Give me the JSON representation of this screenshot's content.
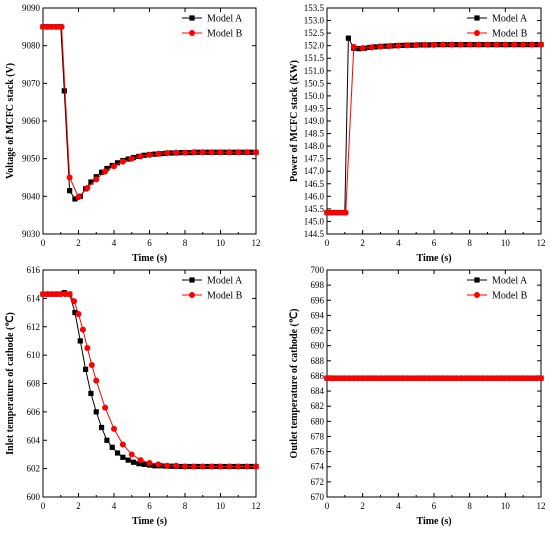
{
  "colors": {
    "model_a": "#000000",
    "model_b": "#ff0000"
  },
  "chart_data": [
    {
      "type": "line",
      "xlabel": "Time (s)",
      "ylabel": "Voltage of MCFC stack (V)",
      "xlim": [
        0,
        12
      ],
      "ylim": [
        9030,
        9090
      ],
      "xticks": [
        "0",
        "2",
        "4",
        "6",
        "8",
        "10",
        "12"
      ],
      "yticks": [
        "9030",
        "9040",
        "9050",
        "9060",
        "9070",
        "9080",
        "9090"
      ],
      "legend": "top-right",
      "series": [
        {
          "name": "Model A",
          "marker": "square",
          "x": [
            0,
            0.2,
            0.4,
            0.6,
            0.8,
            1.0,
            1.2,
            1.5,
            1.8,
            2.1,
            2.4,
            2.7,
            3.0,
            3.3,
            3.6,
            3.9,
            4.2,
            4.5,
            4.8,
            5.1,
            5.4,
            5.7,
            6.0,
            6.3,
            6.6,
            6.9,
            7.2,
            7.5,
            7.8,
            8.1,
            8.4,
            8.7,
            9.0,
            9.3,
            9.6,
            9.9,
            10.2,
            10.5,
            10.8,
            11.1,
            11.4,
            11.7,
            12.0
          ],
          "y": [
            9085,
            9085,
            9085,
            9085,
            9085,
            9085,
            9068,
            9041.5,
            9039.3,
            9040,
            9042,
            9043.8,
            9045.2,
            9046.4,
            9047.4,
            9048.2,
            9048.9,
            9049.5,
            9049.9,
            9050.3,
            9050.6,
            9050.9,
            9051.1,
            9051.2,
            9051.3,
            9051.4,
            9051.5,
            9051.5,
            9051.6,
            9051.6,
            9051.6,
            9051.7,
            9051.7,
            9051.7,
            9051.7,
            9051.7,
            9051.7,
            9051.7,
            9051.7,
            9051.7,
            9051.7,
            9051.7,
            9051.7
          ]
        },
        {
          "name": "Model B",
          "marker": "circle",
          "x": [
            0,
            0.25,
            0.5,
            0.75,
            1.0,
            1.05,
            1.5,
            2.0,
            2.5,
            3.0,
            3.5,
            4.0,
            4.5,
            5.0,
            5.5,
            6.0,
            6.5,
            7.0,
            7.5,
            8.0,
            8.5,
            9.0,
            9.5,
            10.0,
            10.5,
            11.0,
            11.5,
            12.0
          ],
          "y": [
            9085,
            9085,
            9085,
            9085,
            9085,
            9085,
            9045,
            9039.8,
            9042.2,
            9044.5,
            9046.6,
            9048,
            9049.2,
            9050,
            9050.6,
            9051,
            9051.3,
            9051.5,
            9051.6,
            9051.6,
            9051.7,
            9051.7,
            9051.7,
            9051.7,
            9051.7,
            9051.7,
            9051.7,
            9051.7
          ]
        }
      ]
    },
    {
      "type": "line",
      "xlabel": "Time (s)",
      "ylabel": "Power of MCFC stack (KW)",
      "xlim": [
        0,
        12
      ],
      "ylim": [
        144.5,
        153.5
      ],
      "xticks": [
        "0",
        "2",
        "4",
        "6",
        "8",
        "10",
        "12"
      ],
      "yticks": [
        "144.5",
        "145.0",
        "145.5",
        "146.0",
        "146.5",
        "147.0",
        "147.5",
        "148.0",
        "148.5",
        "149.0",
        "149.5",
        "150.0",
        "150.5",
        "151.0",
        "151.5",
        "152.0",
        "152.5",
        "153.0",
        "153.5"
      ],
      "legend": "top-right",
      "series": [
        {
          "name": "Model A",
          "marker": "square",
          "x": [
            0,
            0.2,
            0.4,
            0.6,
            0.8,
            1.0,
            1.2,
            1.5,
            1.8,
            2.1,
            2.4,
            2.7,
            3.0,
            3.3,
            3.6,
            3.9,
            4.2,
            4.5,
            4.8,
            5.1,
            5.4,
            5.7,
            6.0,
            6.3,
            6.6,
            6.9,
            7.2,
            7.5,
            7.8,
            8.1,
            8.4,
            8.7,
            9.0,
            9.3,
            9.6,
            9.9,
            10.2,
            10.5,
            10.8,
            11.1,
            11.4,
            11.7,
            12.0
          ],
          "y": [
            145.35,
            145.35,
            145.35,
            145.35,
            145.35,
            145.35,
            152.3,
            151.9,
            151.88,
            151.9,
            151.93,
            151.95,
            151.97,
            151.98,
            151.99,
            152.0,
            152.01,
            152.02,
            152.02,
            152.03,
            152.03,
            152.03,
            152.04,
            152.04,
            152.04,
            152.04,
            152.04,
            152.04,
            152.04,
            152.04,
            152.04,
            152.04,
            152.04,
            152.04,
            152.04,
            152.04,
            152.04,
            152.04,
            152.04,
            152.04,
            152.04,
            152.04,
            152.04
          ]
        },
        {
          "name": "Model B",
          "marker": "circle",
          "x": [
            0,
            0.25,
            0.5,
            0.75,
            1.0,
            1.05,
            1.5,
            2.0,
            2.5,
            3.0,
            3.5,
            4.0,
            4.5,
            5.0,
            5.5,
            6.0,
            6.5,
            7.0,
            7.5,
            8.0,
            8.5,
            9.0,
            9.5,
            10.0,
            10.5,
            11.0,
            11.5,
            12.0
          ],
          "y": [
            145.35,
            145.35,
            145.35,
            145.35,
            145.35,
            145.35,
            151.95,
            151.9,
            151.93,
            151.96,
            151.98,
            152.0,
            152.01,
            152.02,
            152.03,
            152.03,
            152.04,
            152.04,
            152.04,
            152.04,
            152.04,
            152.04,
            152.04,
            152.04,
            152.04,
            152.04,
            152.04,
            152.04
          ]
        }
      ]
    },
    {
      "type": "line",
      "xlabel": "Time (s)",
      "ylabel": "Inlet temperature of cathode (℃)",
      "xlim": [
        0,
        12
      ],
      "ylim": [
        600,
        616
      ],
      "xticks": [
        "0",
        "2",
        "4",
        "6",
        "8",
        "10",
        "12"
      ],
      "yticks": [
        "600",
        "602",
        "604",
        "606",
        "608",
        "610",
        "612",
        "614",
        "616"
      ],
      "legend": "top-right",
      "series": [
        {
          "name": "Model A",
          "marker": "square",
          "x": [
            0,
            0.3,
            0.6,
            0.9,
            1.2,
            1.5,
            1.8,
            2.1,
            2.4,
            2.7,
            3.0,
            3.3,
            3.6,
            3.9,
            4.2,
            4.5,
            4.8,
            5.1,
            5.4,
            5.7,
            6.0,
            6.3,
            6.6,
            6.9,
            7.2,
            7.5,
            7.8,
            8.1,
            8.4,
            8.7,
            9.0,
            9.3,
            9.6,
            9.9,
            10.2,
            10.5,
            10.8,
            11.1,
            11.4,
            11.7,
            12.0
          ],
          "y": [
            614.3,
            614.3,
            614.3,
            614.3,
            614.4,
            614.3,
            613.0,
            611.0,
            609.0,
            607.3,
            606.0,
            604.9,
            604.0,
            603.5,
            603.1,
            602.8,
            602.6,
            602.45,
            602.35,
            602.3,
            602.25,
            602.2,
            602.2,
            602.18,
            602.17,
            602.16,
            602.15,
            602.15,
            602.15,
            602.15,
            602.15,
            602.15,
            602.15,
            602.15,
            602.15,
            602.15,
            602.15,
            602.15,
            602.15,
            602.15,
            602.15
          ]
        },
        {
          "name": "Model B",
          "marker": "circle",
          "x": [
            0,
            0.25,
            0.5,
            0.75,
            1.0,
            1.25,
            1.5,
            1.75,
            2.0,
            2.25,
            2.5,
            2.75,
            3.0,
            3.5,
            4.0,
            4.5,
            5.0,
            5.5,
            6.0,
            6.5,
            7.0,
            7.5,
            8.0,
            8.5,
            9.0,
            9.5,
            10.0,
            10.5,
            11.0,
            11.5,
            12.0
          ],
          "y": [
            614.3,
            614.3,
            614.3,
            614.3,
            614.3,
            614.3,
            614.3,
            613.8,
            612.9,
            611.8,
            610.5,
            609.3,
            608.2,
            606.3,
            604.8,
            603.7,
            603.0,
            602.6,
            602.4,
            602.3,
            602.2,
            602.2,
            602.15,
            602.15,
            602.15,
            602.15,
            602.15,
            602.15,
            602.15,
            602.15,
            602.15
          ]
        }
      ]
    },
    {
      "type": "line",
      "xlabel": "Time (s)",
      "ylabel": "Outlet temperature of cathode (℃)",
      "xlim": [
        0,
        12
      ],
      "ylim": [
        670,
        700
      ],
      "xticks": [
        "0",
        "2",
        "4",
        "6",
        "8",
        "10",
        "12"
      ],
      "yticks": [
        "670",
        "672",
        "674",
        "676",
        "678",
        "680",
        "682",
        "684",
        "686",
        "688",
        "690",
        "692",
        "694",
        "696",
        "698",
        "700"
      ],
      "legend": "top-right",
      "series": [
        {
          "name": "Model A",
          "marker": "square",
          "x": [
            0,
            0.3,
            0.6,
            0.9,
            1.2,
            1.5,
            1.8,
            2.1,
            2.4,
            2.7,
            3.0,
            3.3,
            3.6,
            3.9,
            4.2,
            4.5,
            4.8,
            5.1,
            5.4,
            5.7,
            6.0,
            6.3,
            6.6,
            6.9,
            7.2,
            7.5,
            7.8,
            8.1,
            8.4,
            8.7,
            9.0,
            9.3,
            9.6,
            9.9,
            10.2,
            10.5,
            10.8,
            11.1,
            11.4,
            11.7,
            12.0
          ],
          "y": [
            685.7,
            685.7,
            685.7,
            685.7,
            685.7,
            685.7,
            685.7,
            685.7,
            685.7,
            685.7,
            685.7,
            685.7,
            685.7,
            685.7,
            685.7,
            685.7,
            685.7,
            685.7,
            685.7,
            685.7,
            685.7,
            685.7,
            685.7,
            685.7,
            685.7,
            685.7,
            685.7,
            685.7,
            685.7,
            685.7,
            685.7,
            685.7,
            685.7,
            685.7,
            685.7,
            685.7,
            685.7,
            685.7,
            685.7,
            685.7,
            685.7
          ]
        },
        {
          "name": "Model B",
          "marker": "circle",
          "x": [
            0,
            0.25,
            0.5,
            0.75,
            1.0,
            1.25,
            1.5,
            1.75,
            2.0,
            2.25,
            2.5,
            2.75,
            3.0,
            3.25,
            3.5,
            3.75,
            4.0,
            4.25,
            4.5,
            4.75,
            5.0,
            5.25,
            5.5,
            5.75,
            6.0,
            6.25,
            6.5,
            6.75,
            7.0,
            7.25,
            7.5,
            7.75,
            8.0,
            8.25,
            8.5,
            8.75,
            9.0,
            9.25,
            9.5,
            9.75,
            10.0,
            10.25,
            10.5,
            10.75,
            11.0,
            11.25,
            11.5,
            11.75,
            12.0
          ],
          "y": [
            685.7,
            685.7,
            685.7,
            685.7,
            685.7,
            685.7,
            685.7,
            685.7,
            685.7,
            685.7,
            685.7,
            685.7,
            685.7,
            685.7,
            685.7,
            685.7,
            685.7,
            685.7,
            685.7,
            685.7,
            685.7,
            685.7,
            685.7,
            685.7,
            685.7,
            685.7,
            685.7,
            685.7,
            685.7,
            685.7,
            685.7,
            685.7,
            685.7,
            685.7,
            685.7,
            685.7,
            685.7,
            685.7,
            685.7,
            685.7,
            685.7,
            685.7,
            685.7,
            685.7,
            685.7,
            685.7,
            685.7,
            685.7,
            685.7
          ]
        }
      ]
    }
  ]
}
